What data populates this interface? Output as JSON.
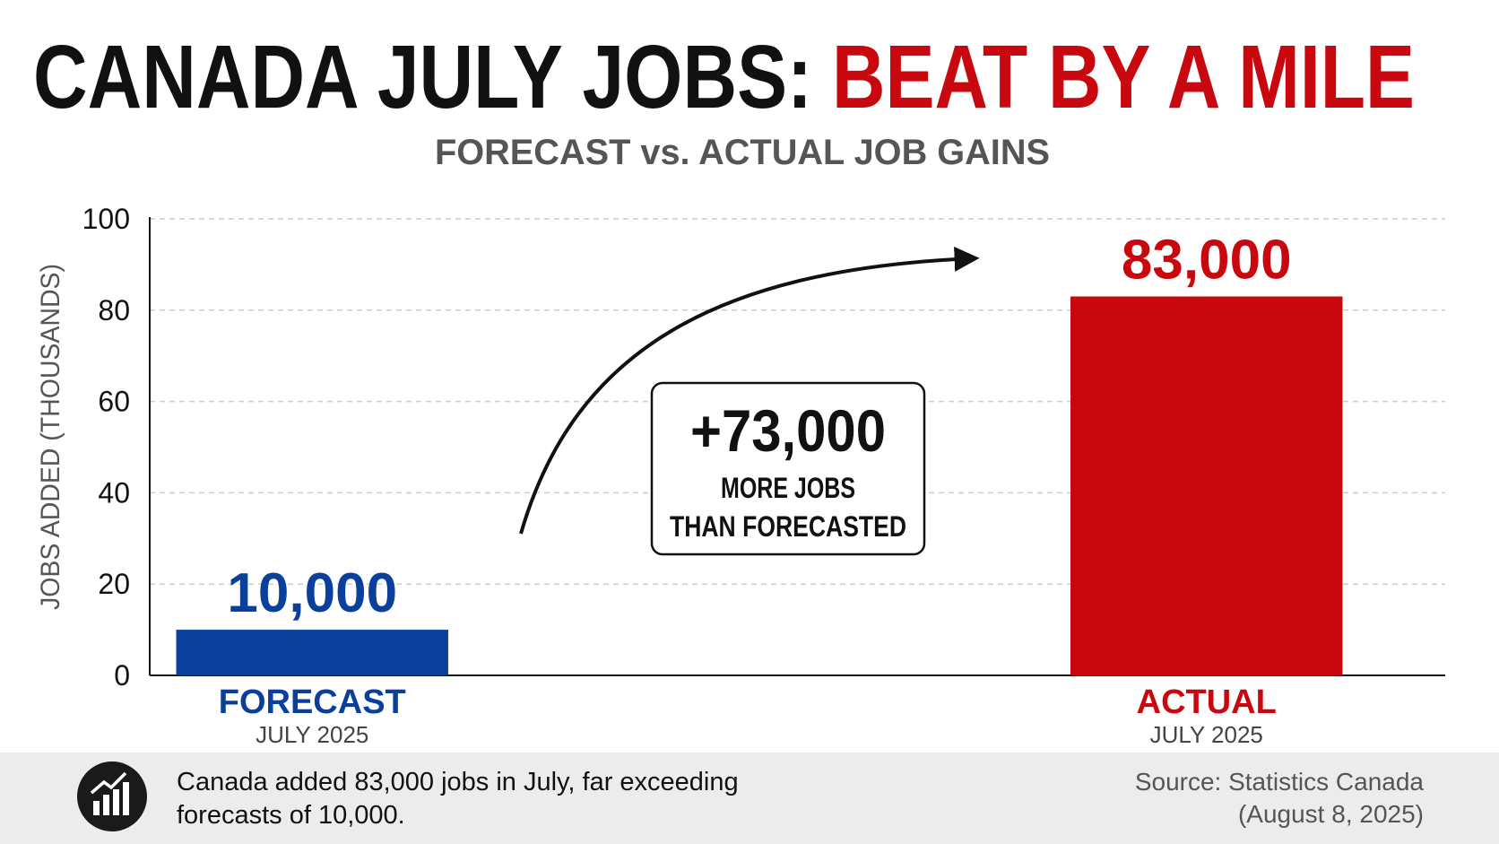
{
  "chart_data": {
    "type": "bar",
    "title": [
      "CANADA JULY JOBS:",
      "BEAT BY A MILE"
    ],
    "title_colors": [
      "#111111",
      "#c8080e"
    ],
    "subtitle": "FORECAST vs. ACTUAL JOB GAINS",
    "ylabel": "JOBS ADDED (THOUSANDS)",
    "categories": [
      "FORECAST",
      "ACTUAL"
    ],
    "category_sublabels": [
      "JULY 2025",
      "JULY 2025"
    ],
    "values": [
      10,
      83
    ],
    "value_labels": [
      "10,000",
      "83,000"
    ],
    "colors": [
      "#0a3f9c",
      "#c8080e"
    ],
    "ylim": [
      0,
      100
    ],
    "yticks": [
      0,
      20,
      40,
      60,
      80,
      100
    ],
    "grid": true,
    "annotation": {
      "headline": "+73,000",
      "lines": [
        "MORE JOBS",
        "THAN FORECASTED"
      ]
    },
    "note": [
      "Canada added 83,000 jobs in July, far exceeding",
      "forecasts of 10,000."
    ],
    "source": [
      "Source: Statistics Canada",
      "(August 8, 2025)"
    ]
  }
}
